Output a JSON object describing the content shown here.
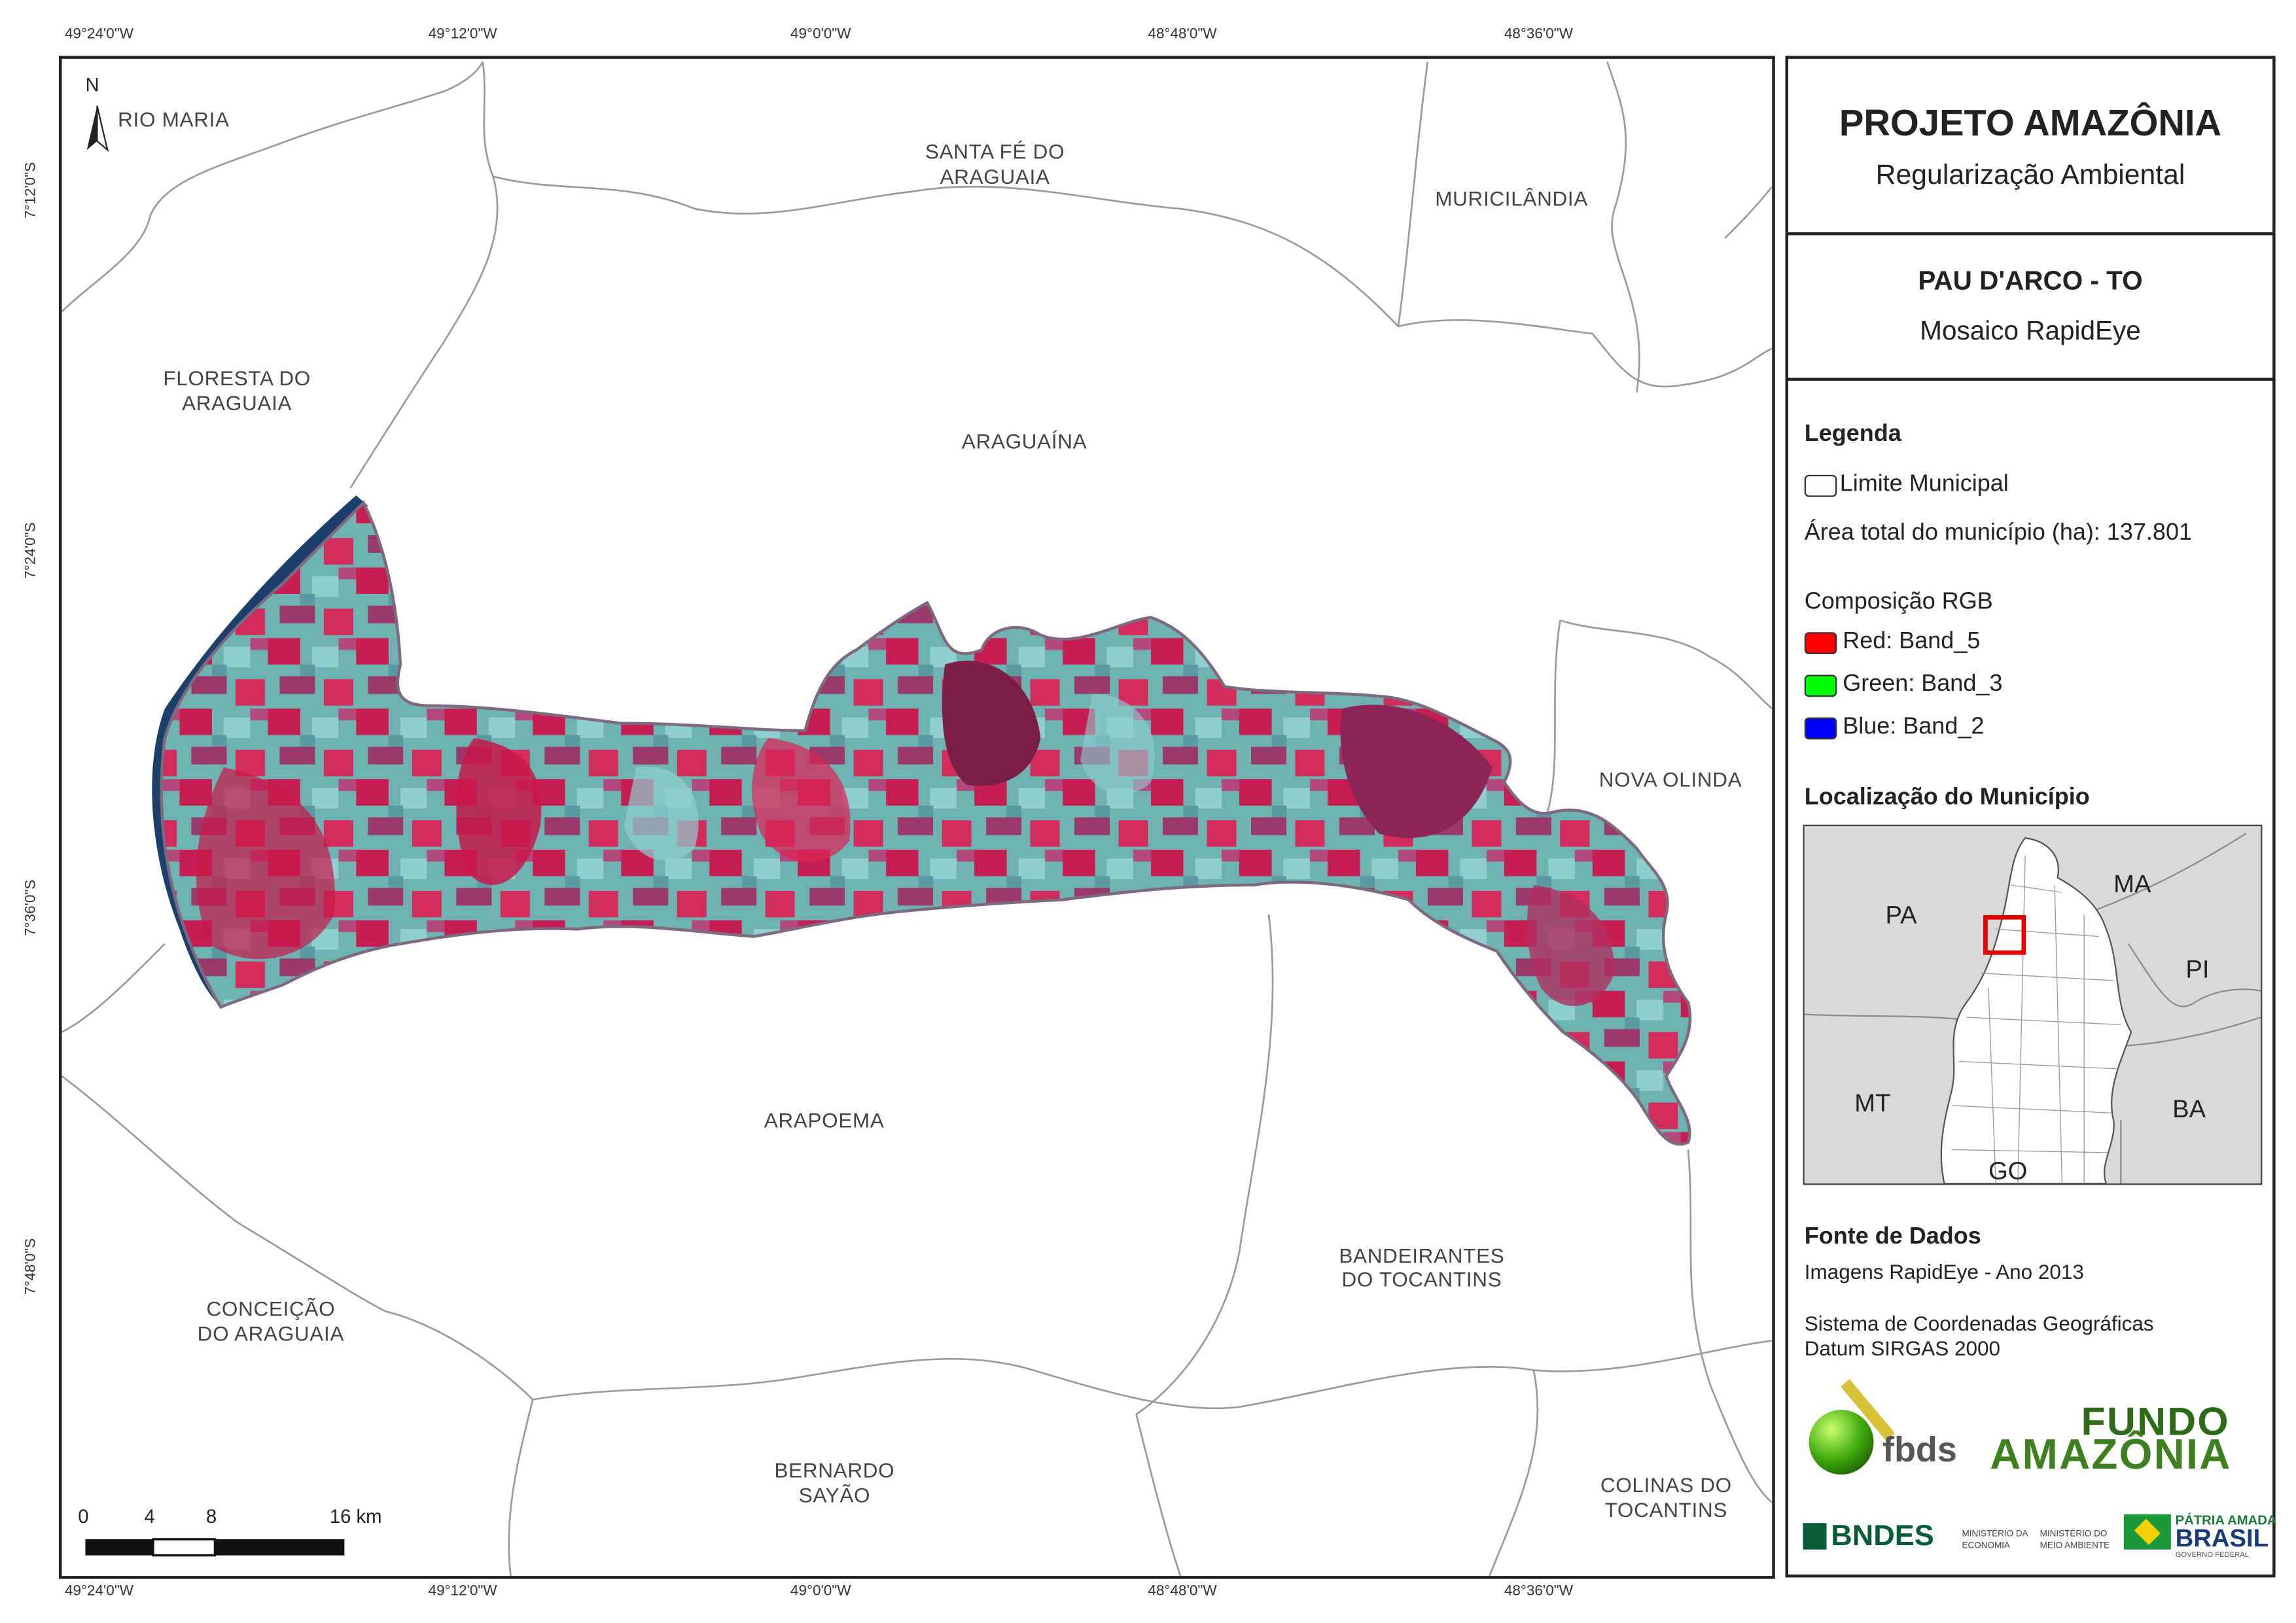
{
  "coordinates": {
    "top_lon": [
      "49°24'0\"W",
      "49°12'0\"W",
      "49°0'0\"W",
      "48°48'0\"W",
      "48°36'0\"W"
    ],
    "bottom_lon": [
      "49°24'0\"W",
      "49°12'0\"W",
      "49°0'0\"W",
      "48°48'0\"W",
      "48°36'0\"W"
    ],
    "left_lat": [
      "7°12'0\"S",
      "7°24'0\"S",
      "7°36'0\"S",
      "7°48'0\"S"
    ]
  },
  "north_arrow": {
    "label": "N"
  },
  "municipalities": {
    "rio_maria": "RIO MARIA",
    "santa_fe_1": "SANTA FÉ DO",
    "santa_fe_2": "ARAGUAIA",
    "muricilandia": "MURICILÂNDIA",
    "floresta_1": "FLORESTA DO",
    "floresta_2": "ARAGUAIA",
    "araguaina": "ARAGUAÍNA",
    "nova_olinda": "NOVA OLINDA",
    "arapoema": "ARAPOEMA",
    "bandeirantes_1": "BANDEIRANTES",
    "bandeirantes_2": "DO TOCANTINS",
    "conceicao_1": "CONCEIÇÃO",
    "conceicao_2": "DO ARAGUAIA",
    "bernardo_1": "BERNARDO",
    "bernardo_2": "SAYÃO",
    "colinas_1": "COLINAS DO",
    "colinas_2": "TOCANTINS"
  },
  "scale_bar": {
    "ticks": [
      "0",
      "4",
      "8",
      "16 km"
    ]
  },
  "panel": {
    "title": "PROJETO AMAZÔNIA",
    "subtitle": "Regularização Ambiental",
    "place": "PAU D'ARCO - TO",
    "mosaic": "Mosaico RapidEye",
    "legend_title": "Legenda",
    "limit_label": "Limite Municipal",
    "area_label": "Área total do município (ha): 137.801",
    "rgb_title": "Composição RGB",
    "bands": [
      {
        "label": "Red:    Band_5",
        "color": "#ff0000"
      },
      {
        "label": "Green: Band_3",
        "color": "#00ff00"
      },
      {
        "label": "Blue:   Band_2",
        "color": "#0000ff"
      }
    ],
    "location_title": "Localização do Município",
    "inset_labels": {
      "pa": "PA",
      "ma": "MA",
      "pi": "PI",
      "mt": "MT",
      "ba": "BA",
      "go": "GO"
    },
    "sources_title": "Fonte de Dados",
    "source_line": "Imagens RapidEye - Ano 2013",
    "crs_line": "Sistema de Coordenadas Geográficas",
    "datum_line": "Datum SIRGAS 2000",
    "logos": {
      "fbds": "fbds",
      "fundo_1": "FUNDO",
      "fundo_2": "AMAZÔNIA",
      "bndes": "BNDES",
      "ministerio_economia": "MINISTÉRIO DA ECONOMIA",
      "ministerio_ambiente": "MINISTÉRIO DO MEIO AMBIENTE",
      "patria_1": "PÁTRIA AMADA",
      "patria_2": "BRASIL",
      "patria_3": "GOVERNO FEDERAL"
    }
  },
  "colors": {
    "study_area_red": "#c8184a",
    "study_area_cyan": "#5fb7b4",
    "study_area_dark": "#7a1e45",
    "river": "#1d3f6c",
    "inset_highlight": "#e00000"
  }
}
